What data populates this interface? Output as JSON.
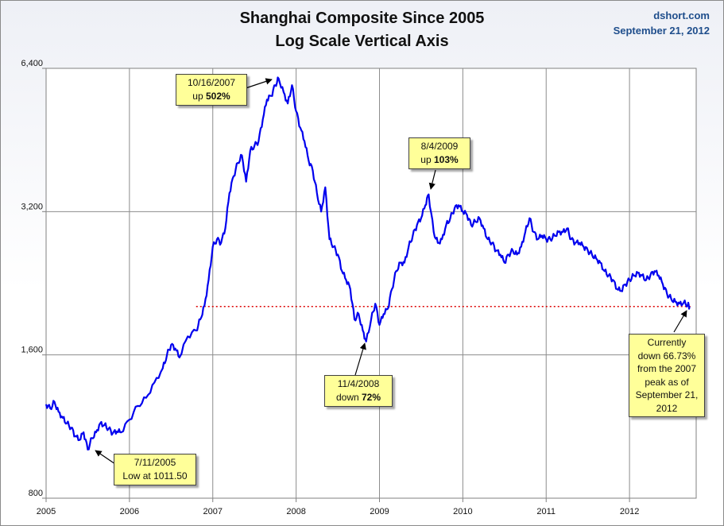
{
  "header": {
    "title_line1": "Shanghai Composite Since 2005",
    "title_line2": "Log Scale Vertical Axis",
    "source": "dshort.com",
    "date": "September 21, 2012"
  },
  "colors": {
    "series": "#0000ee",
    "reference_line": "#dd0000",
    "callout_bg": "#ffff99"
  },
  "annotations": {
    "peak": {
      "line1": "10/16/2007",
      "prefix": "up ",
      "bold": "502%"
    },
    "high09": {
      "line1": "8/4/2009",
      "prefix": "up ",
      "bold": "103%"
    },
    "low08": {
      "line1": "11/4/2008",
      "prefix": "down ",
      "bold": "72%"
    },
    "low05": {
      "line1": "7/11/2005",
      "line2": "Low at 1011.50"
    },
    "current": {
      "line1": "Currently",
      "line2": "down 66.73%",
      "line3": "from the 2007",
      "line4": "peak as of",
      "line5": "September 21,",
      "line6": "2012"
    }
  },
  "chart_data": {
    "type": "line",
    "title": "Shanghai Composite Since 2005",
    "subtitle": "Log Scale Vertical Axis",
    "y_scale": "log",
    "ylim": [
      800,
      6400
    ],
    "y_ticks": [
      800,
      1600,
      3200,
      6400
    ],
    "y_tick_labels": [
      "800",
      "1,600",
      "3,200",
      "6,400"
    ],
    "xlim": [
      2005.0,
      2012.8
    ],
    "x_ticks": [
      2005,
      2006,
      2007,
      2008,
      2009,
      2010,
      2011,
      2012
    ],
    "x_tick_labels": [
      "2005",
      "2006",
      "2007",
      "2008",
      "2009",
      "2010",
      "2011",
      "2012"
    ],
    "grid": true,
    "reference_line": {
      "y": 2022,
      "from_x": 2006.8,
      "style": "dotted"
    },
    "series": [
      {
        "x": [
          2005.0,
          2005.05,
          2005.1,
          2005.15,
          2005.2,
          2005.25,
          2005.3,
          2005.35,
          2005.4,
          2005.45,
          2005.5,
          2005.55,
          2005.6,
          2005.65,
          2005.7,
          2005.75,
          2005.8,
          2005.85,
          2005.9,
          2006.0,
          2006.1,
          2006.2,
          2006.3,
          2006.4,
          2006.45,
          2006.5,
          2006.55,
          2006.6,
          2006.7,
          2006.8,
          2006.85,
          2006.9,
          2006.95,
          2007.0,
          2007.05,
          2007.1,
          2007.15,
          2007.2,
          2007.25,
          2007.3,
          2007.35,
          2007.4,
          2007.45,
          2007.5,
          2007.55,
          2007.6,
          2007.65,
          2007.7,
          2007.75,
          2007.79,
          2007.85,
          2007.9,
          2007.95,
          2008.0,
          2008.05,
          2008.1,
          2008.15,
          2008.2,
          2008.25,
          2008.3,
          2008.35,
          2008.4,
          2008.45,
          2008.5,
          2008.55,
          2008.6,
          2008.65,
          2008.7,
          2008.75,
          2008.8,
          2008.84,
          2008.9,
          2008.95,
          2009.0,
          2009.05,
          2009.1,
          2009.15,
          2009.2,
          2009.25,
          2009.3,
          2009.35,
          2009.4,
          2009.45,
          2009.5,
          2009.55,
          2009.59,
          2009.65,
          2009.7,
          2009.75,
          2009.8,
          2009.85,
          2009.9,
          2009.95,
          2010.0,
          2010.05,
          2010.1,
          2010.15,
          2010.2,
          2010.25,
          2010.3,
          2010.35,
          2010.4,
          2010.45,
          2010.5,
          2010.55,
          2010.6,
          2010.65,
          2010.7,
          2010.75,
          2010.8,
          2010.85,
          2010.9,
          2010.95,
          2011.0,
          2011.05,
          2011.1,
          2011.15,
          2011.2,
          2011.25,
          2011.3,
          2011.35,
          2011.4,
          2011.45,
          2011.5,
          2011.55,
          2011.6,
          2011.65,
          2011.7,
          2011.75,
          2011.8,
          2011.85,
          2011.9,
          2011.95,
          2012.0,
          2012.05,
          2012.1,
          2012.15,
          2012.2,
          2012.25,
          2012.3,
          2012.35,
          2012.4,
          2012.45,
          2012.5,
          2012.55,
          2012.6,
          2012.65,
          2012.7,
          2012.72
        ],
        "values": [
          1260,
          1235,
          1275,
          1215,
          1180,
          1150,
          1125,
          1080,
          1060,
          1100,
          1012,
          1070,
          1100,
          1150,
          1140,
          1120,
          1095,
          1105,
          1100,
          1170,
          1250,
          1300,
          1400,
          1500,
          1600,
          1680,
          1650,
          1580,
          1750,
          1800,
          1900,
          2030,
          2300,
          2700,
          2800,
          2750,
          2950,
          3500,
          3800,
          4050,
          4200,
          3700,
          4300,
          4400,
          4500,
          5000,
          5500,
          5600,
          5900,
          6092,
          5700,
          5400,
          5900,
          5200,
          4800,
          4500,
          4100,
          3900,
          3500,
          3200,
          3600,
          2800,
          2700,
          2600,
          2400,
          2300,
          2200,
          1900,
          1950,
          1800,
          1707,
          1900,
          2050,
          1850,
          1950,
          2000,
          2200,
          2400,
          2500,
          2500,
          2700,
          2850,
          3000,
          3100,
          3300,
          3478,
          2900,
          2750,
          2800,
          3000,
          3100,
          3250,
          3300,
          3200,
          3150,
          3000,
          3050,
          3100,
          2950,
          2800,
          2750,
          2650,
          2600,
          2500,
          2600,
          2650,
          2600,
          2700,
          2900,
          3100,
          2900,
          2800,
          2850,
          2800,
          2800,
          2850,
          2900,
          2900,
          2950,
          2800,
          2750,
          2750,
          2700,
          2650,
          2600,
          2550,
          2500,
          2400,
          2350,
          2300,
          2200,
          2180,
          2250,
          2300,
          2350,
          2380,
          2350,
          2300,
          2350,
          2400,
          2350,
          2250,
          2150,
          2100,
          2070,
          2050,
          2060,
          2040,
          2022
        ]
      }
    ]
  }
}
